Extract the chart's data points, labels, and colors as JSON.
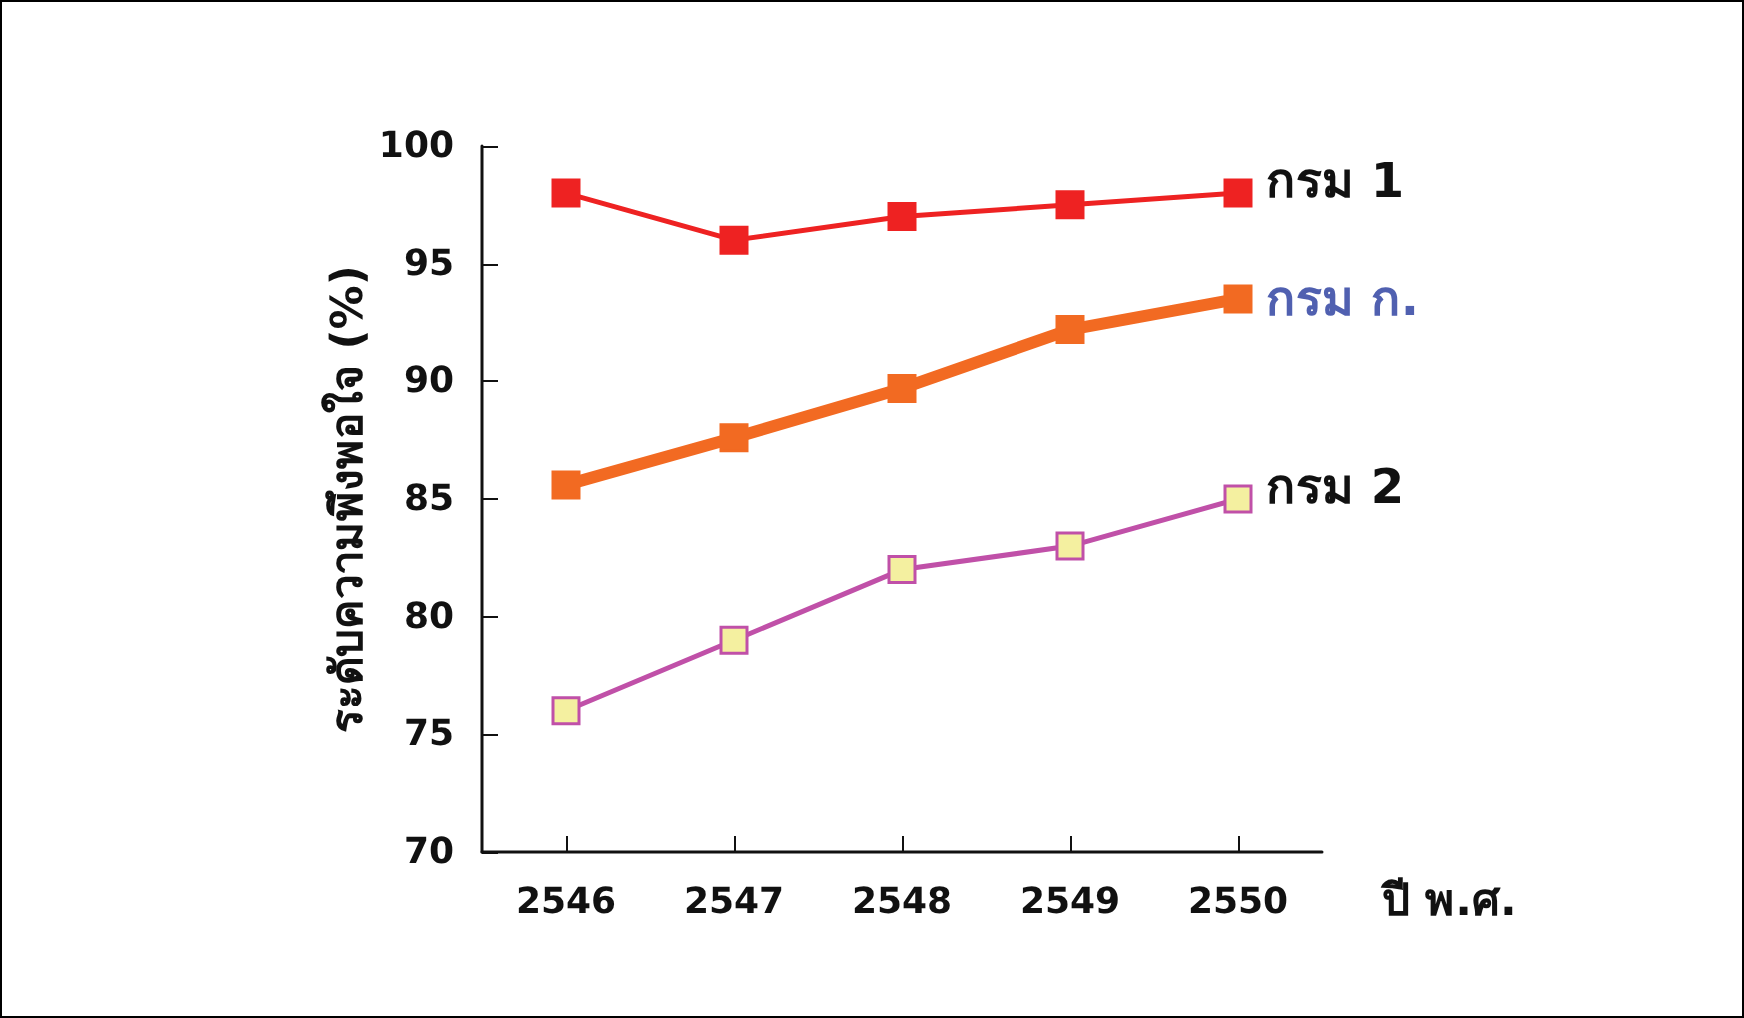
{
  "chart_data": {
    "type": "line",
    "xlabel": "ปี พ.ศ.",
    "ylabel": "ระดับความพึงพอใจ (%)",
    "categories": [
      "2546",
      "2547",
      "2548",
      "2549",
      "2550"
    ],
    "series": [
      {
        "name": "กรม 1",
        "color": "#ee2222",
        "values": [
          98,
          96,
          97,
          97.5,
          98
        ]
      },
      {
        "name": "กรม ก.",
        "color": "#f26a22",
        "values": [
          85.6,
          87.6,
          89.7,
          92.2,
          93.5
        ]
      },
      {
        "name": "กรม 2",
        "color": "#c050a8",
        "values": [
          76,
          79,
          82,
          83,
          85
        ]
      }
    ],
    "ylim": [
      70,
      100
    ],
    "yticks": [
      70,
      75,
      80,
      85,
      90,
      95,
      100
    ],
    "grid": false,
    "legend": false,
    "marker": "square",
    "line_style": "solid"
  }
}
